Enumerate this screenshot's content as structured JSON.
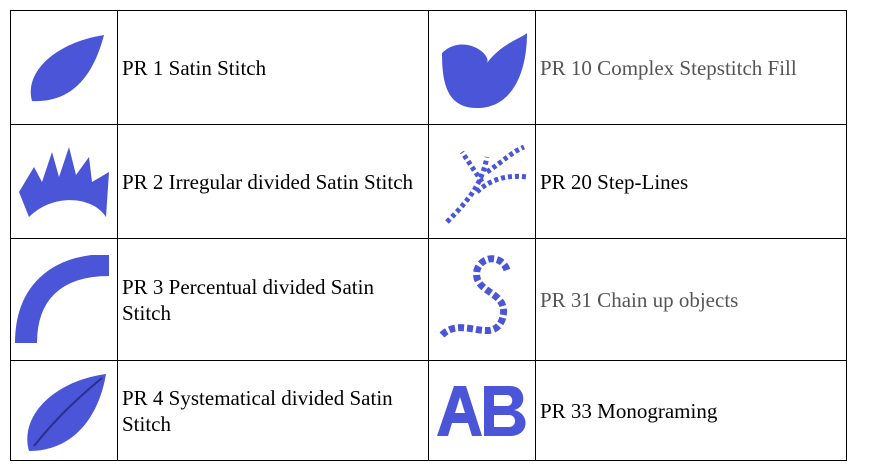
{
  "table": {
    "rows": [
      [
        "PR 1 Satin Stitch",
        "PR 10 Complex Stepstitch Fill"
      ],
      [
        "PR 2 Irregular divided Satin Stitch",
        "PR 20 Step-Lines"
      ],
      [
        "PR 3 Percentual divided Satin Stitch",
        "PR 31 Chain up objects"
      ],
      [
        "PR 4 Systematical divided Satin Stitch",
        "PR 33 Monograming"
      ]
    ]
  }
}
